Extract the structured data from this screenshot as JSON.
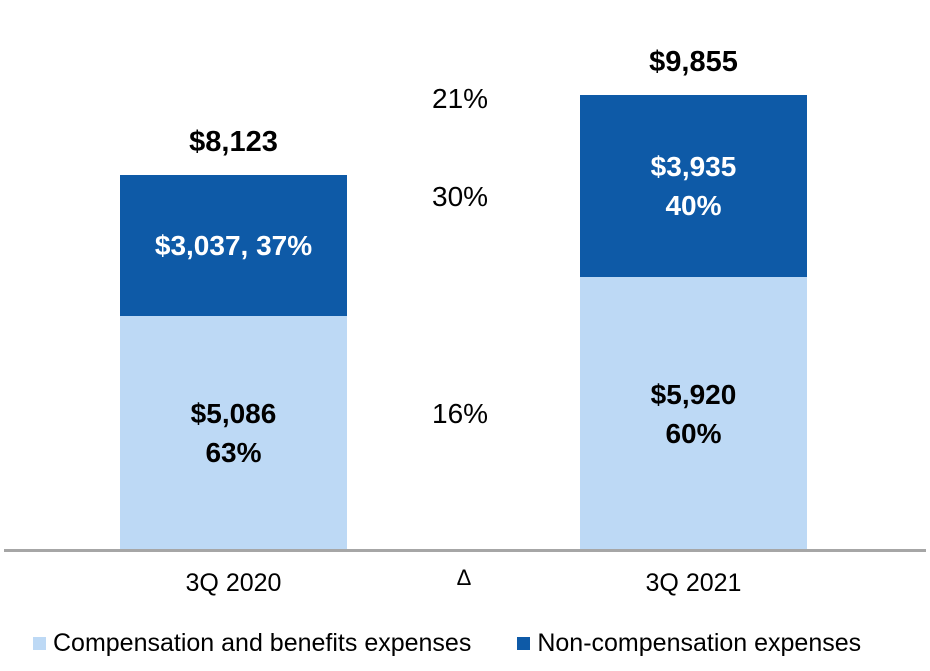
{
  "chart_data": {
    "type": "bar",
    "stacked": true,
    "title": "",
    "categories": [
      "3Q 2020",
      "3Q 2021"
    ],
    "series": [
      {
        "name": "Compensation and benefits expenses",
        "color": "#BDD9F5",
        "values": [
          5086,
          5920
        ],
        "segment_labels": [
          "$5,086\n63%",
          "$5,920\n60%"
        ]
      },
      {
        "name": "Non-compensation expenses",
        "color": "#0E5AA7",
        "values": [
          3037,
          3935
        ],
        "segment_labels": [
          "$3,037, 37%",
          "$3,935\n40%"
        ]
      }
    ],
    "totals": [
      "$8,123",
      "$9,855"
    ],
    "delta": {
      "header": "Δ",
      "total": "21%",
      "non_compensation": "30%",
      "compensation": "16%"
    },
    "ylim": [
      0,
      9855
    ],
    "grid": false,
    "legend_position": "bottom"
  },
  "legend": {
    "items": [
      {
        "label": "Compensation and benefits expenses",
        "color": "#BDD9F5"
      },
      {
        "label": "Non-compensation expenses",
        "color": "#0E5AA7"
      }
    ]
  }
}
